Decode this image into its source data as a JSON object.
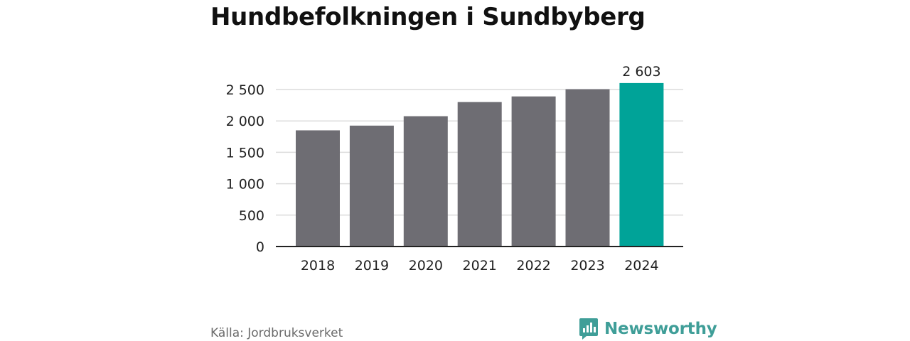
{
  "title": "Hundbefolkningen i Sundbyberg",
  "source": "Källa: Jordbruksverket",
  "brand": {
    "name": "Newsworthy",
    "icon": "newsworthy-logo-icon"
  },
  "colors": {
    "bar": "#6e6d73",
    "highlight": "#00a398",
    "grid": "#dcdcdc",
    "axis": "#222222",
    "brand": "#3f9e98"
  },
  "chart_data": {
    "type": "bar",
    "categories": [
      "2018",
      "2019",
      "2020",
      "2021",
      "2022",
      "2023",
      "2024"
    ],
    "values": [
      1850,
      1925,
      2075,
      2300,
      2390,
      2505,
      2603
    ],
    "highlight_index": 6,
    "data_labels": [
      {
        "index": 6,
        "text": "2 603"
      }
    ],
    "yticks": [
      0,
      500,
      1000,
      1500,
      2000,
      2500
    ],
    "ytick_labels": [
      "0",
      "500",
      "1 000",
      "1 500",
      "2 000",
      "2 500"
    ],
    "ylim": [
      0,
      2700
    ],
    "grid": "horizontal",
    "legend": "none"
  }
}
